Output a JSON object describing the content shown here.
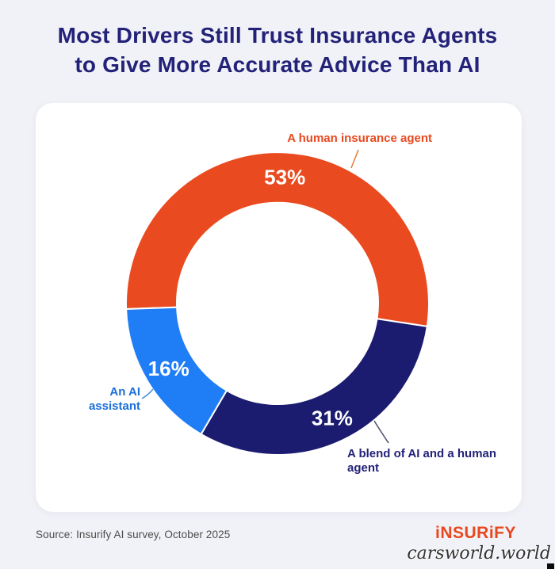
{
  "page": {
    "background_color": "#f1f2f7",
    "title_lines": [
      "Most Drivers Still Trust Insurance Agents",
      "to Give More Accurate Advice Than AI"
    ],
    "title_color": "#232279"
  },
  "chart_data": {
    "type": "pie",
    "donut": true,
    "title": "Most Drivers Still Trust Insurance Agents to Give More Accurate Advice Than AI",
    "start_angle_deg_clockwise_from_top": 267.9,
    "legend_position": "callouts",
    "value_label_color": "#ffffff",
    "slices": [
      {
        "label": "A human insurance agent",
        "value": 53,
        "display": "53%",
        "color": "#ea4a1f",
        "label_color": "#e8481f",
        "leader_color": "#e8813f"
      },
      {
        "label": "A blend of AI and a human agent",
        "value": 31,
        "display": "31%",
        "color": "#1b1b70",
        "label_color": "#232279",
        "leader_color": "#565670"
      },
      {
        "label": "An AI assistant",
        "value": 16,
        "display": "16%",
        "color": "#1f7df5",
        "label_color": "#1b6fd8",
        "leader_color": "#4a8fd8"
      }
    ]
  },
  "footer": {
    "source": "Source: Insurify AI survey, October 2025",
    "logo_text": "iNSURiFY",
    "watermark": "carsworld.world"
  }
}
